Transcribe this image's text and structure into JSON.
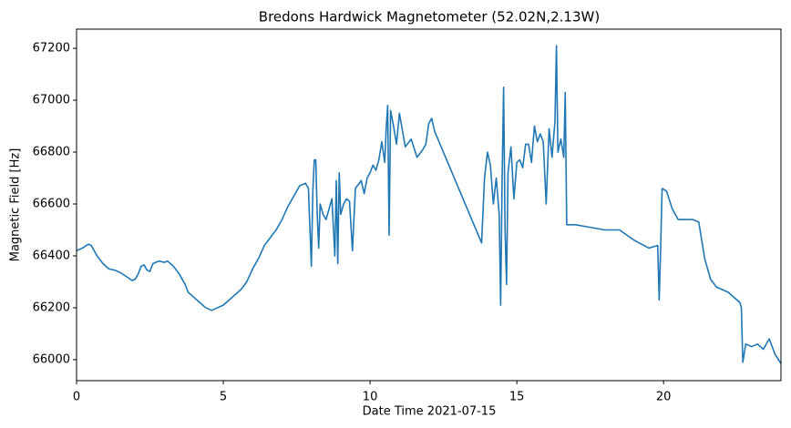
{
  "chart_data": {
    "type": "line",
    "title": "Bredons Hardwick Magnetometer (52.02N,2.13W)",
    "xlabel": "Date Time 2021-07-15",
    "ylabel": "Magnetic Field [Hz]",
    "color": "#1f77b4",
    "xlim": [
      0,
      24
    ],
    "xticks": [
      0,
      5,
      10,
      15,
      20
    ],
    "ylim": [
      65919,
      67274
    ],
    "yticks": [
      66000,
      66200,
      66400,
      66600,
      66800,
      67000,
      67200
    ],
    "x": [
      0,
      0.2,
      0.4,
      0.5,
      0.7,
      0.9,
      1.1,
      1.3,
      1.5,
      1.7,
      1.9,
      2.0,
      2.1,
      2.2,
      2.3,
      2.4,
      2.5,
      2.6,
      2.8,
      3.0,
      3.1,
      3.3,
      3.5,
      3.7,
      3.8,
      4.0,
      4.2,
      4.4,
      4.6,
      4.8,
      5.0,
      5.2,
      5.4,
      5.6,
      5.8,
      6.0,
      6.2,
      6.4,
      6.6,
      6.8,
      7.0,
      7.2,
      7.4,
      7.6,
      7.8,
      7.9,
      8.0,
      8.05,
      8.1,
      8.15,
      8.2,
      8.25,
      8.3,
      8.4,
      8.5,
      8.6,
      8.7,
      8.8,
      8.85,
      8.9,
      8.95,
      9.0,
      9.1,
      9.2,
      9.3,
      9.4,
      9.5,
      9.7,
      9.8,
      9.9,
      10.0,
      10.1,
      10.2,
      10.3,
      10.4,
      10.5,
      10.55,
      10.6,
      10.65,
      10.7,
      10.8,
      10.9,
      11.0,
      11.2,
      11.4,
      11.6,
      11.8,
      11.9,
      12.0,
      12.1,
      12.2,
      13.8,
      13.9,
      14.0,
      14.1,
      14.2,
      14.3,
      14.4,
      14.45,
      14.5,
      14.55,
      14.6,
      14.65,
      14.7,
      14.8,
      14.9,
      15.0,
      15.1,
      15.2,
      15.3,
      15.4,
      15.5,
      15.6,
      15.7,
      15.8,
      15.9,
      16.0,
      16.1,
      16.2,
      16.3,
      16.35,
      16.4,
      16.5,
      16.6,
      16.65,
      16.7,
      17.0,
      17.5,
      18.0,
      18.5,
      19.0,
      19.5,
      19.8,
      19.85,
      19.9,
      19.95,
      20.1,
      20.3,
      20.5,
      21.0,
      21.2,
      21.4,
      21.6,
      21.8,
      22.0,
      22.2,
      22.5,
      22.6,
      22.65,
      22.7,
      22.8,
      23.0,
      23.2,
      23.4,
      23.6,
      23.8,
      24.0
    ],
    "values": [
      66420,
      66430,
      66445,
      66440,
      66400,
      66370,
      66350,
      66345,
      66335,
      66320,
      66305,
      66310,
      66330,
      66360,
      66365,
      66345,
      66340,
      66370,
      66380,
      66375,
      66380,
      66360,
      66330,
      66290,
      66260,
      66240,
      66220,
      66200,
      66190,
      66200,
      66210,
      66230,
      66250,
      66270,
      66300,
      66350,
      66390,
      66440,
      66470,
      66500,
      66540,
      66590,
      66630,
      66670,
      66680,
      66660,
      66360,
      66650,
      66770,
      66770,
      66560,
      66430,
      66600,
      66560,
      66540,
      66580,
      66620,
      66400,
      66690,
      66370,
      66720,
      66560,
      66600,
      66620,
      66610,
      66420,
      66660,
      66690,
      66640,
      66700,
      66720,
      66750,
      66730,
      66770,
      66840,
      66760,
      66890,
      66980,
      66480,
      66960,
      66900,
      66830,
      66950,
      66820,
      66850,
      66780,
      66810,
      66830,
      66910,
      66930,
      66880,
      66450,
      66700,
      66800,
      66750,
      66600,
      66700,
      66560,
      66210,
      66700,
      67050,
      66500,
      66290,
      66720,
      66820,
      66620,
      66760,
      66770,
      66740,
      66830,
      66830,
      66760,
      66900,
      66840,
      66870,
      66840,
      66600,
      66890,
      66780,
      66920,
      67210,
      66800,
      66850,
      66780,
      67030,
      66520,
      66520,
      66510,
      66500,
      66500,
      66460,
      66430,
      66440,
      66230,
      66430,
      66660,
      66650,
      66580,
      66540,
      66540,
      66530,
      66390,
      66310,
      66280,
      66270,
      66260,
      66230,
      66220,
      66200,
      65990,
      66060,
      66050,
      66060,
      66040,
      66080,
      66020,
      65985
    ]
  }
}
